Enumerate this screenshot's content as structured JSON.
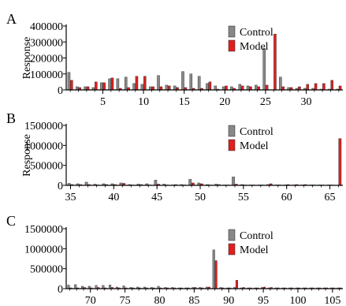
{
  "chart_data": [
    {
      "panel": "A",
      "type": "bar",
      "ylabel": "Response",
      "ylim": [
        0,
        400000
      ],
      "yticks": [
        0,
        100000,
        200000,
        300000,
        400000
      ],
      "xlim": [
        0.5,
        34.5
      ],
      "xticks": [
        5,
        10,
        15,
        20,
        25,
        30
      ],
      "legend_position": "top-right",
      "categories": [
        1,
        2,
        3,
        4,
        5,
        6,
        7,
        8,
        9,
        10,
        11,
        12,
        13,
        14,
        15,
        16,
        17,
        18,
        19,
        20,
        21,
        22,
        23,
        24,
        25,
        26,
        27,
        28,
        29,
        30,
        31,
        32,
        33,
        34
      ],
      "series": [
        {
          "name": "Control",
          "color": "#888888",
          "values": [
            110000,
            20000,
            20000,
            15000,
            45000,
            70000,
            70000,
            80000,
            40000,
            35000,
            20000,
            90000,
            30000,
            25000,
            115000,
            100000,
            85000,
            40000,
            25000,
            20000,
            20000,
            35000,
            25000,
            30000,
            260000,
            0,
            80000,
            15000,
            10000,
            10000,
            10000,
            5000,
            5000,
            5000
          ]
        },
        {
          "name": "Model",
          "color": "#e02020",
          "values": [
            60000,
            15000,
            20000,
            50000,
            45000,
            75000,
            10000,
            15000,
            85000,
            85000,
            20000,
            20000,
            25000,
            15000,
            15000,
            10000,
            10000,
            50000,
            5000,
            25000,
            10000,
            25000,
            20000,
            20000,
            30000,
            350000,
            20000,
            15000,
            20000,
            35000,
            40000,
            40000,
            60000,
            25000
          ]
        }
      ]
    },
    {
      "panel": "B",
      "type": "bar",
      "ylabel": "Response",
      "ylim": [
        0,
        1500000
      ],
      "yticks": [
        0,
        500000,
        1000000,
        1500000
      ],
      "xlim": [
        34.5,
        66.5
      ],
      "xticks": [
        35,
        40,
        45,
        50,
        55,
        60,
        65
      ],
      "legend_position": "top-right",
      "categories": [
        35,
        36,
        37,
        38,
        39,
        40,
        41,
        42,
        43,
        44,
        45,
        46,
        47,
        48,
        49,
        50,
        51,
        52,
        53,
        54,
        55,
        56,
        57,
        58,
        59,
        60,
        61,
        62,
        63,
        64,
        65,
        66
      ],
      "series": [
        {
          "name": "Control",
          "color": "#888888",
          "values": [
            50000,
            40000,
            80000,
            30000,
            40000,
            40000,
            60000,
            20000,
            30000,
            40000,
            130000,
            30000,
            10000,
            20000,
            150000,
            60000,
            20000,
            30000,
            10000,
            210000,
            20000,
            10000,
            10000,
            20000,
            10000,
            10000,
            10000,
            10000,
            10000,
            10000,
            10000,
            0
          ]
        },
        {
          "name": "Model",
          "color": "#e02020",
          "values": [
            20000,
            20000,
            20000,
            10000,
            20000,
            20000,
            50000,
            10000,
            20000,
            10000,
            30000,
            10000,
            20000,
            10000,
            60000,
            40000,
            10000,
            20000,
            10000,
            30000,
            10000,
            10000,
            10000,
            40000,
            10000,
            20000,
            20000,
            20000,
            10000,
            10000,
            10000,
            1170000
          ]
        }
      ]
    },
    {
      "panel": "C",
      "type": "bar",
      "ylim": [
        0,
        1500000
      ],
      "yticks": [
        0,
        500000,
        1000000,
        1500000
      ],
      "xlim": [
        66.5,
        106.5
      ],
      "xticks": [
        70,
        75,
        80,
        85,
        90,
        95,
        100,
        105
      ],
      "legend_position": "top-right",
      "categories": [
        67,
        68,
        69,
        70,
        71,
        72,
        73,
        74,
        75,
        76,
        77,
        78,
        79,
        80,
        81,
        82,
        83,
        84,
        85,
        86,
        87,
        88,
        89,
        90,
        91,
        92,
        93,
        94,
        95,
        96,
        97,
        98,
        99,
        100,
        101,
        102,
        103,
        104,
        105,
        106
      ],
      "series": [
        {
          "name": "Control",
          "color": "#888888",
          "values": [
            90000,
            100000,
            60000,
            60000,
            80000,
            80000,
            90000,
            40000,
            70000,
            30000,
            40000,
            40000,
            30000,
            60000,
            30000,
            30000,
            20000,
            20000,
            30000,
            30000,
            40000,
            970000,
            30000,
            20000,
            30000,
            20000,
            20000,
            20000,
            30000,
            20000,
            20000,
            20000,
            20000,
            20000,
            20000,
            20000,
            20000,
            20000,
            20000,
            20000
          ]
        },
        {
          "name": "Model",
          "color": "#e02020",
          "values": [
            20000,
            20000,
            30000,
            20000,
            30000,
            20000,
            30000,
            20000,
            20000,
            20000,
            20000,
            20000,
            20000,
            20000,
            20000,
            20000,
            20000,
            20000,
            30000,
            20000,
            40000,
            700000,
            20000,
            20000,
            210000,
            30000,
            20000,
            20000,
            40000,
            30000,
            20000,
            20000,
            20000,
            20000,
            20000,
            20000,
            20000,
            20000,
            20000,
            20000
          ]
        }
      ]
    }
  ]
}
